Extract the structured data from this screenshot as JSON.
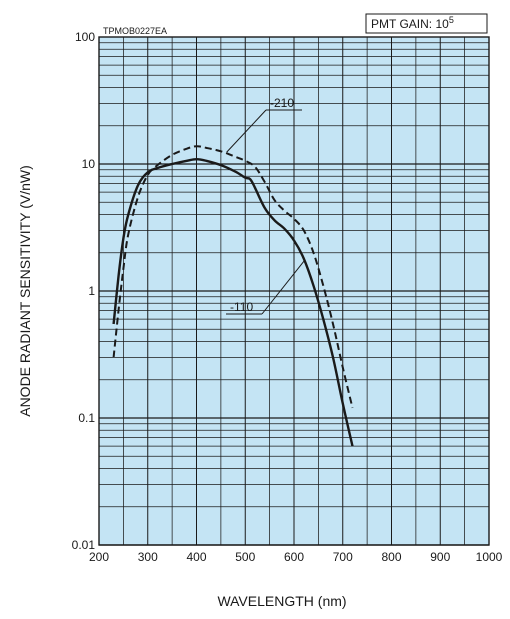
{
  "chart_data": {
    "type": "line",
    "code_label": "TPMOB0227EA",
    "gain_label": "PMT GAIN: 10",
    "gain_exponent": "5",
    "xlabel": "WAVELENGTH (nm)",
    "ylabel": "ANODE RADIANT SENSITIVITY (V/nW)",
    "xlim": [
      200,
      1000
    ],
    "ylim": [
      0.01,
      100
    ],
    "yscale": "log",
    "grid": true,
    "plot_background": "#c4e4f4",
    "x_ticks": [
      "200",
      "300",
      "400",
      "500",
      "600",
      "700",
      "800",
      "900",
      "1000"
    ],
    "y_ticks": [
      "100",
      "10",
      "1",
      "0.1",
      "0.01"
    ],
    "series": [
      {
        "name": "-110",
        "style": "solid",
        "x": [
          230,
          240,
          250,
          260,
          280,
          300,
          320,
          350,
          380,
          400,
          420,
          450,
          480,
          500,
          510,
          520,
          540,
          560,
          580,
          600,
          620,
          640,
          660,
          680,
          700,
          720
        ],
        "y": [
          0.55,
          1.3,
          2.6,
          4.0,
          6.8,
          8.6,
          9.3,
          10.0,
          10.6,
          10.9,
          10.6,
          9.8,
          8.7,
          7.8,
          7.6,
          6.5,
          4.5,
          3.6,
          3.1,
          2.5,
          1.8,
          1.1,
          0.6,
          0.3,
          0.13,
          0.06
        ]
      },
      {
        "name": "-210",
        "style": "dashed",
        "x": [
          230,
          240,
          250,
          260,
          280,
          300,
          320,
          350,
          380,
          400,
          420,
          450,
          480,
          500,
          520,
          540,
          560,
          580,
          600,
          620,
          640,
          660,
          680,
          700,
          720
        ],
        "y": [
          0.3,
          0.7,
          1.5,
          2.8,
          5.5,
          8.2,
          9.8,
          11.8,
          13.2,
          13.8,
          13.4,
          12.6,
          11.4,
          10.6,
          9.5,
          7.2,
          5.2,
          4.3,
          3.7,
          3.0,
          2.0,
          1.1,
          0.55,
          0.25,
          0.12
        ]
      }
    ],
    "annotations": [
      {
        "text": "-210",
        "series": 1
      },
      {
        "text": "-110",
        "series": 0
      }
    ]
  }
}
